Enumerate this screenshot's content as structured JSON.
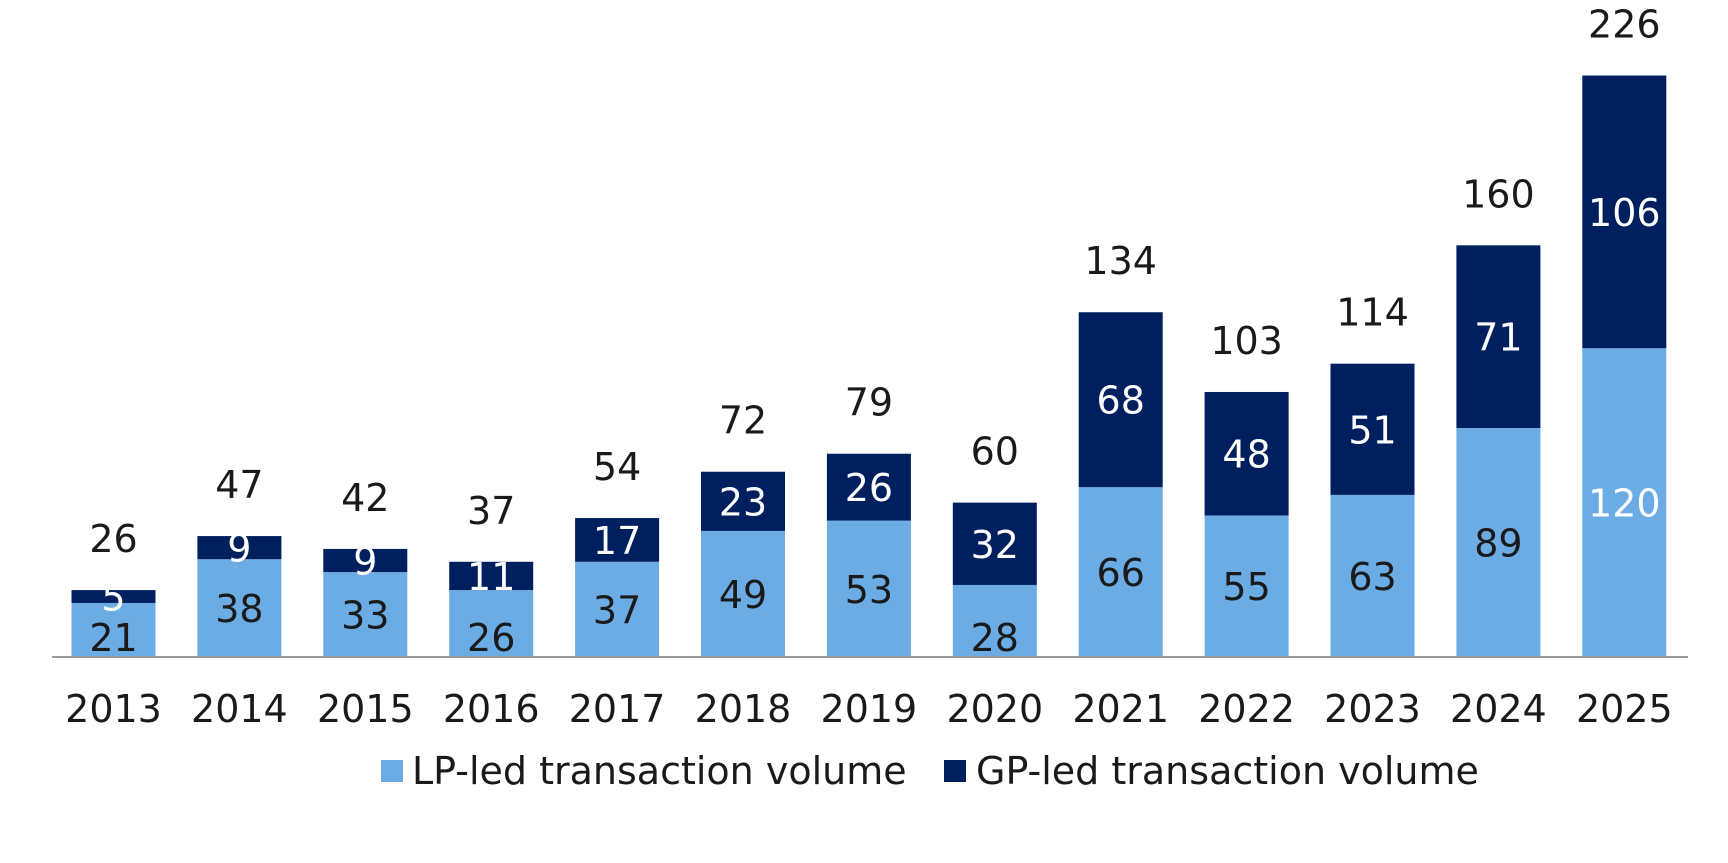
{
  "chart_data": {
    "type": "bar",
    "stacked": true,
    "categories": [
      "2013",
      "2014",
      "2015",
      "2016",
      "2017",
      "2018",
      "2019",
      "2020",
      "2021",
      "2022",
      "2023",
      "2024",
      "2025"
    ],
    "series": [
      {
        "name": "LP-led transaction volume",
        "color": "#6CACE4",
        "values": [
          21,
          38,
          33,
          26,
          37,
          49,
          53,
          28,
          66,
          55,
          63,
          89,
          120
        ]
      },
      {
        "name": "GP-led transaction volume",
        "color": "#001F5F",
        "values": [
          5,
          9,
          9,
          11,
          17,
          23,
          26,
          32,
          68,
          48,
          51,
          71,
          106
        ]
      }
    ],
    "totals": [
      26,
      47,
      42,
      37,
      54,
      72,
      79,
      60,
      134,
      103,
      114,
      160,
      226
    ],
    "ylim": [
      0,
      250
    ],
    "grid": false,
    "legend": "bottom-center",
    "label_colors": {
      "lp_labels": [
        "#1a1a1a",
        "#1a1a1a",
        "#1a1a1a",
        "#1a1a1a",
        "#1a1a1a",
        "#1a1a1a",
        "#1a1a1a",
        "#1a1a1a",
        "#1a1a1a",
        "#1a1a1a",
        "#1a1a1a",
        "#1a1a1a",
        "#ffffff"
      ],
      "gp_labels": [
        "#ffffff",
        "#ffffff",
        "#ffffff",
        "#ffffff",
        "#ffffff",
        "#ffffff",
        "#ffffff",
        "#ffffff",
        "#ffffff",
        "#ffffff",
        "#ffffff",
        "#ffffff",
        "#ffffff"
      ]
    }
  }
}
